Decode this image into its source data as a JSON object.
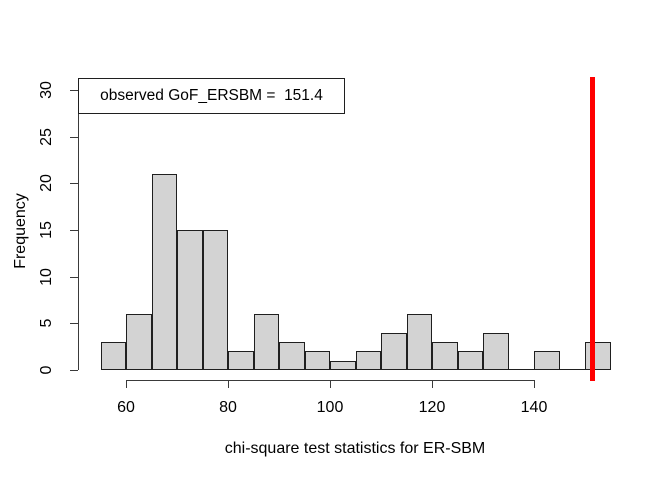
{
  "chart_data": {
    "type": "bar",
    "subtype": "histogram",
    "title": "",
    "xlabel": "chi-square test statistics for ER-SBM",
    "ylabel": "Frequency",
    "bin_edges": [
      55,
      60,
      65,
      70,
      75,
      80,
      85,
      90,
      95,
      100,
      105,
      110,
      115,
      120,
      125,
      130,
      135,
      140,
      145,
      150,
      155
    ],
    "frequencies": [
      3,
      6,
      21,
      15,
      15,
      2,
      6,
      3,
      2,
      1,
      2,
      4,
      6,
      3,
      2,
      4,
      0,
      2,
      0,
      3
    ],
    "x_ticks": [
      60,
      80,
      100,
      120,
      140
    ],
    "y_ticks": [
      0,
      5,
      10,
      15,
      20,
      25,
      30
    ],
    "xlim": [
      55,
      155
    ],
    "ylim": [
      0,
      30
    ],
    "grid": false,
    "legend_position": "topleft",
    "legend_text": "observed GoF_ERSBM =  151.4",
    "vline": {
      "x": 151.4,
      "color": "#ff0000"
    }
  },
  "styles": {
    "background": "#ffffff",
    "bar_fill": "#d3d3d3",
    "bar_border": "#1f1f1f",
    "axis_color": "#3a3a3a",
    "text_color": "#000000",
    "legend_border": "#1f1f1f",
    "legend_background": "#ffffff",
    "vline_color": "#ff0000"
  }
}
